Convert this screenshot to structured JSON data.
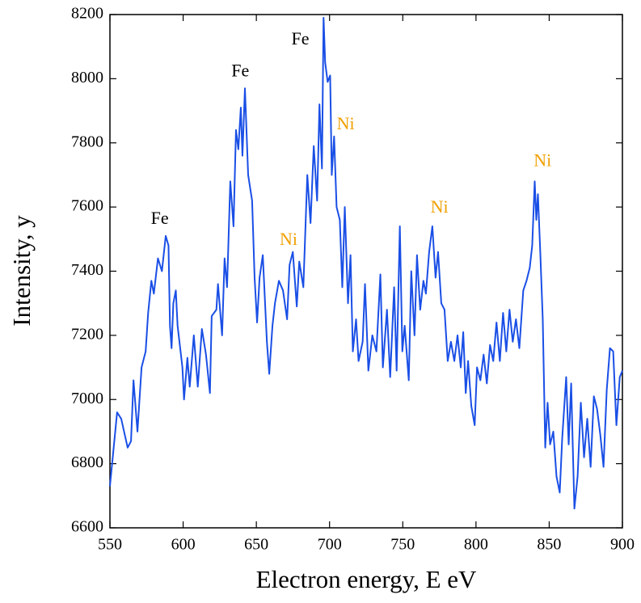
{
  "chart_data": {
    "type": "line",
    "xlabel": "Electron energy, E eV",
    "ylabel": "Intensity, y",
    "x": [
      550,
      554.9,
      557.7,
      562.1,
      564.4,
      566.1,
      568.8,
      571.6,
      574.4,
      576.1,
      578.3,
      580.0,
      582.8,
      585.5,
      588.1,
      590.0,
      591.0,
      592.1,
      593.3,
      595.0,
      596.2,
      599.5,
      600.6,
      602.9,
      604.5,
      607.3,
      610.0,
      612.8,
      615.6,
      618.3,
      619.5,
      622.7,
      623.8,
      626.6,
      628.3,
      630.0,
      632.2,
      634.4,
      636.1,
      637.7,
      639.4,
      640.5,
      642.2,
      644.4,
      647.1,
      648.8,
      650.5,
      652.2,
      654.4,
      657.2,
      658.8,
      661.0,
      662.7,
      665.4,
      668.2,
      671.0,
      672.7,
      674.9,
      677.6,
      679.3,
      682.1,
      684.8,
      687.0,
      689.2,
      691.5,
      693.1,
      694.8,
      695.9,
      697.0,
      698.7,
      700.4,
      701.5,
      703.1,
      704.8,
      707.0,
      708.7,
      710.4,
      712.6,
      714.3,
      715.9,
      718.1,
      719.8,
      722.6,
      724.2,
      726.5,
      729.2,
      732.0,
      734.7,
      736.4,
      739.2,
      741.4,
      744.1,
      745.8,
      748.0,
      749.7,
      751.3,
      754.1,
      755.8,
      758.0,
      759.7,
      761.9,
      764.1,
      765.8,
      768.0,
      770.2,
      772.4,
      774.1,
      776.3,
      778.5,
      780.7,
      782.9,
      785.2,
      787.4,
      789.6,
      791.3,
      793.0,
      794.6,
      796.8,
      799.1,
      800.7,
      803.0,
      805.2,
      807.4,
      809.6,
      811.8,
      814.0,
      816.3,
      818.5,
      820.7,
      822.9,
      825.1,
      827.3,
      829.6,
      832.3,
      834.5,
      836.7,
      838.4,
      840.1,
      841.2,
      842.3,
      843.9,
      845.6,
      847.3,
      848.9,
      850.6,
      852.8,
      855.0,
      857.2,
      858.9,
      861.6,
      863.3,
      865.0,
      867.2,
      869.4,
      871.6,
      873.8,
      876.0,
      878.3,
      880.5,
      882.7,
      884.9,
      887.1,
      889.3,
      891.5,
      893.7,
      895.9,
      898.2,
      900
    ],
    "series": [
      {
        "name": "Intensity",
        "color": "#1a4fe6",
        "values": [
          6730,
          6960,
          6940,
          6850,
          6870,
          7060,
          6900,
          7100,
          7150,
          7270,
          7370,
          7330,
          7440,
          7400,
          7510,
          7480,
          7230,
          7160,
          7300,
          7340,
          7230,
          7100,
          7000,
          7130,
          7040,
          7200,
          7040,
          7220,
          7140,
          7020,
          7260,
          7280,
          7360,
          7200,
          7440,
          7350,
          7680,
          7540,
          7840,
          7780,
          7910,
          7760,
          7970,
          7700,
          7620,
          7380,
          7240,
          7380,
          7450,
          7180,
          7080,
          7230,
          7300,
          7370,
          7340,
          7250,
          7420,
          7460,
          7290,
          7430,
          7350,
          7700,
          7550,
          7790,
          7620,
          7920,
          7720,
          8190,
          8050,
          7990,
          8010,
          7700,
          7820,
          7600,
          7560,
          7350,
          7600,
          7300,
          7450,
          7150,
          7250,
          7120,
          7180,
          7360,
          7090,
          7200,
          7150,
          7390,
          7100,
          7280,
          7070,
          7350,
          7090,
          7540,
          7150,
          7230,
          7060,
          7400,
          7200,
          7450,
          7280,
          7370,
          7330,
          7460,
          7540,
          7380,
          7460,
          7300,
          7280,
          7120,
          7180,
          7120,
          7200,
          7100,
          7210,
          7020,
          7120,
          6980,
          6920,
          7100,
          7060,
          7140,
          7050,
          7170,
          7120,
          7240,
          7120,
          7270,
          7150,
          7280,
          7180,
          7250,
          7160,
          7340,
          7370,
          7410,
          7480,
          7680,
          7560,
          7640,
          7460,
          7250,
          6850,
          6990,
          6860,
          6900,
          6760,
          6710,
          6880,
          7070,
          6860,
          7050,
          6660,
          6760,
          6990,
          6820,
          6940,
          6790,
          7010,
          6970,
          6890,
          6790,
          7030,
          7160,
          7150,
          6920,
          7070,
          7090
        ]
      }
    ],
    "xlim": [
      550,
      900
    ],
    "xticks": [
      550,
      600,
      650,
      700,
      750,
      800,
      850,
      900
    ],
    "ylim": [
      6600,
      8200
    ],
    "yticks": [
      6600,
      6800,
      7000,
      7200,
      7400,
      7600,
      7800,
      8000,
      8200
    ],
    "annotations": [
      {
        "text": "Fe",
        "x": 584,
        "y": 7560,
        "color": "#000000"
      },
      {
        "text": "Fe",
        "x": 639,
        "y": 8020,
        "color": "#000000"
      },
      {
        "text": "Fe",
        "x": 680,
        "y": 8120,
        "color": "#000000"
      },
      {
        "text": "Ni",
        "x": 672,
        "y": 7495,
        "color": "#f0a000"
      },
      {
        "text": "Ni",
        "x": 711,
        "y": 7855,
        "color": "#f0a000"
      },
      {
        "text": "Ni",
        "x": 775,
        "y": 7595,
        "color": "#f0a000"
      },
      {
        "text": "Ni",
        "x": 845.5,
        "y": 7740,
        "color": "#f0a000"
      }
    ]
  }
}
